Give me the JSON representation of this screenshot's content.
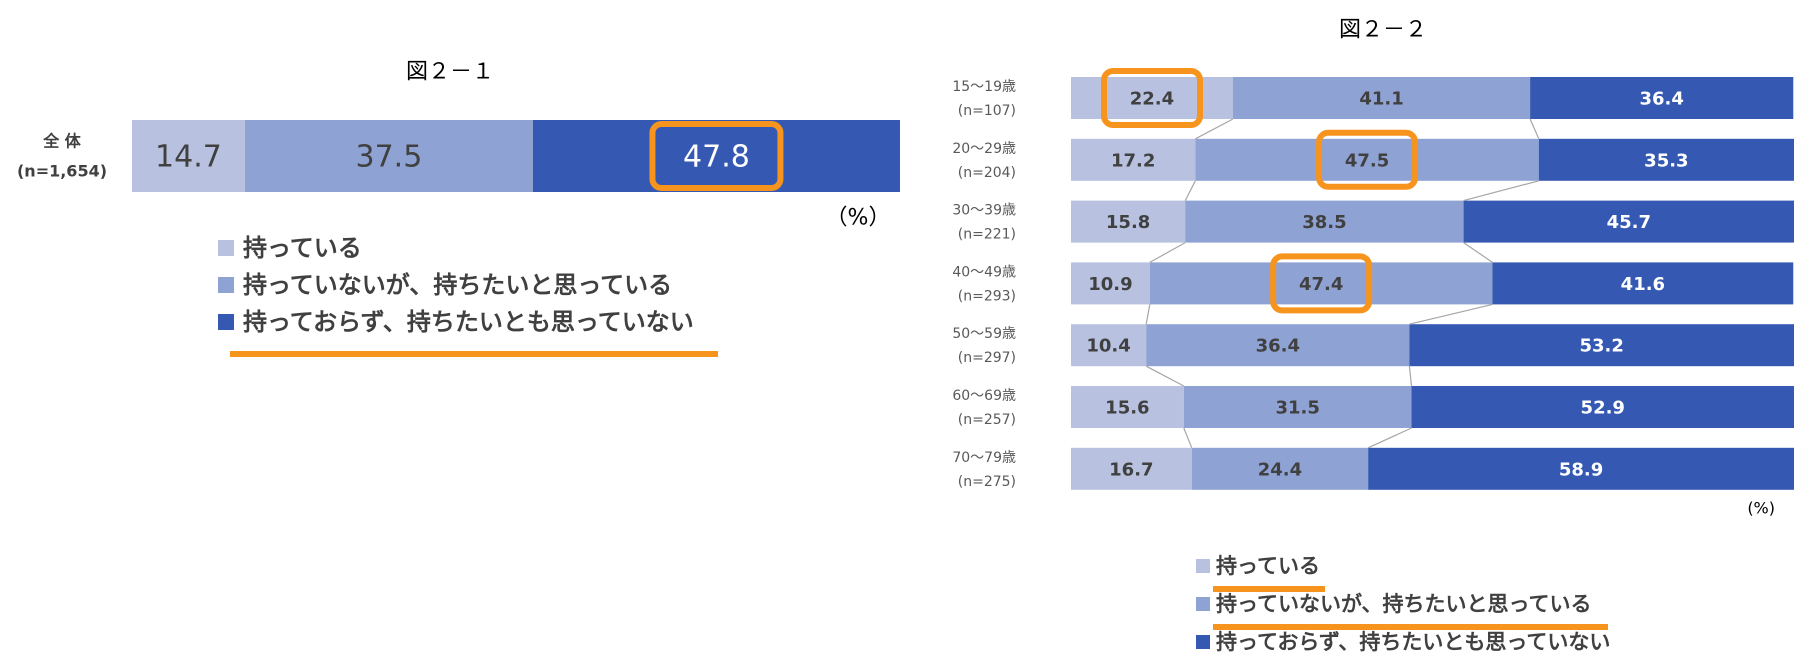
{
  "colors": {
    "c1": "#b8c2e0",
    "c2": "#8fa2d4",
    "c3": "#3559b3",
    "highlight": "#f7941d",
    "text_dark": "#404040",
    "text_light": "#ffffff",
    "connector": "#a6a6a6"
  },
  "chart_data": [
    {
      "type": "bar",
      "orientation": "horizontal",
      "stacked": "percent",
      "title": "図２－１",
      "unit_label": "（%）",
      "categories": [
        {
          "label": "全 体",
          "n": "(n=1,654)"
        }
      ],
      "series": [
        {
          "name": "持っている",
          "values": [
            14.7
          ]
        },
        {
          "name": "持っていないが、持ちたいと思っている",
          "values": [
            37.5
          ]
        },
        {
          "name": "持っておらず、持ちたいとも思っていない",
          "values": [
            47.8
          ]
        }
      ],
      "highlighted_values": [
        {
          "series": 2,
          "category": 0
        }
      ],
      "legend": {
        "position": "bottom",
        "items": [
          "持っている",
          "持っていないが、持ちたいと思っている",
          "持っておらず、持ちたいとも思っていない"
        ],
        "underlined": [
          2
        ]
      },
      "xlim": [
        0,
        100
      ]
    },
    {
      "type": "bar",
      "orientation": "horizontal",
      "stacked": "percent",
      "title": "図２－２",
      "unit_label": "(%)",
      "categories": [
        {
          "label": "15～19歳",
          "n": "(n=107)"
        },
        {
          "label": "20～29歳",
          "n": "(n=204)"
        },
        {
          "label": "30～39歳",
          "n": "(n=221)"
        },
        {
          "label": "40～49歳",
          "n": "(n=293)"
        },
        {
          "label": "50～59歳",
          "n": "(n=297)"
        },
        {
          "label": "60～69歳",
          "n": "(n=257)"
        },
        {
          "label": "70～79歳",
          "n": "(n=275)"
        }
      ],
      "series": [
        {
          "name": "持っている",
          "values": [
            22.4,
            17.2,
            15.8,
            10.9,
            10.4,
            15.6,
            16.7
          ]
        },
        {
          "name": "持っていないが、持ちたいと思っている",
          "values": [
            41.1,
            47.5,
            38.5,
            47.4,
            36.4,
            31.5,
            24.4
          ]
        },
        {
          "name": "持っておらず、持ちたいとも思っていない",
          "values": [
            36.4,
            35.3,
            45.7,
            41.6,
            53.2,
            52.9,
            58.9
          ]
        }
      ],
      "highlighted_values": [
        {
          "series": 0,
          "category": 0
        },
        {
          "series": 1,
          "category": 1
        },
        {
          "series": 1,
          "category": 3
        }
      ],
      "series_lines": true,
      "legend": {
        "position": "bottom",
        "items": [
          "持っている",
          "持っていないが、持ちたいと思っている",
          "持っておらず、持ちたいとも思っていない"
        ],
        "underlined": [
          0,
          1
        ]
      },
      "xlim": [
        0,
        100
      ]
    }
  ]
}
